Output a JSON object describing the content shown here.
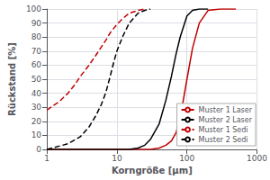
{
  "chart_data": {
    "type": "line",
    "xlabel": "Korngröße [μm]",
    "ylabel": "Rückstand [%]",
    "log": "x",
    "xlim": [
      1,
      1000
    ],
    "xticks": [
      1,
      10,
      100,
      1000
    ],
    "ylim": [
      0,
      100
    ],
    "yticks": [
      0,
      10,
      20,
      30,
      40,
      50,
      60,
      70,
      80,
      90,
      100
    ],
    "grid": true,
    "legend": "lower right",
    "series": [
      {
        "name": "Muster 1 Laser",
        "color": "#c00000",
        "line_style": "solid",
        "x": [
          1,
          5,
          10,
          15,
          20,
          25,
          30,
          40,
          50,
          60,
          70,
          80,
          100,
          120,
          150,
          200,
          300,
          500
        ],
        "values": [
          0,
          0,
          0,
          0,
          0,
          0,
          0,
          1,
          3,
          6,
          12,
          22,
          50,
          72,
          90,
          99,
          100,
          100
        ]
      },
      {
        "name": "Muster 2 Laser",
        "color": "#000000",
        "line_style": "solid",
        "x": [
          1,
          5,
          10,
          15,
          20,
          25,
          30,
          40,
          50,
          60,
          70,
          80,
          100,
          120,
          150,
          200
        ],
        "values": [
          0,
          0,
          0,
          0,
          1,
          3,
          7,
          18,
          35,
          52,
          68,
          80,
          95,
          99,
          100,
          100
        ]
      },
      {
        "name": "Muster 1 Sedi",
        "color": "#c00000",
        "line_style": "dashed",
        "x": [
          1.0,
          1.5,
          2.0,
          2.5,
          3.0,
          4.0,
          5.0,
          6.0,
          7.0,
          8.0,
          10.0,
          12.0,
          15.0,
          20.0,
          25.0
        ],
        "values": [
          28,
          34,
          40,
          46,
          52,
          60,
          67,
          73,
          78,
          83,
          89,
          93,
          97,
          99,
          100
        ]
      },
      {
        "name": "Muster 2 Sedi",
        "color": "#000000",
        "line_style": "dashed",
        "x": [
          1.0,
          2.0,
          3.0,
          4.0,
          5.0,
          6.0,
          7.0,
          8.0,
          9.0,
          10.0,
          12.0,
          15.0,
          20.0,
          25.0,
          30.0
        ],
        "values": [
          0,
          4,
          9,
          16,
          24,
          32,
          41,
          52,
          62,
          70,
          80,
          90,
          97,
          99,
          100
        ]
      }
    ]
  }
}
